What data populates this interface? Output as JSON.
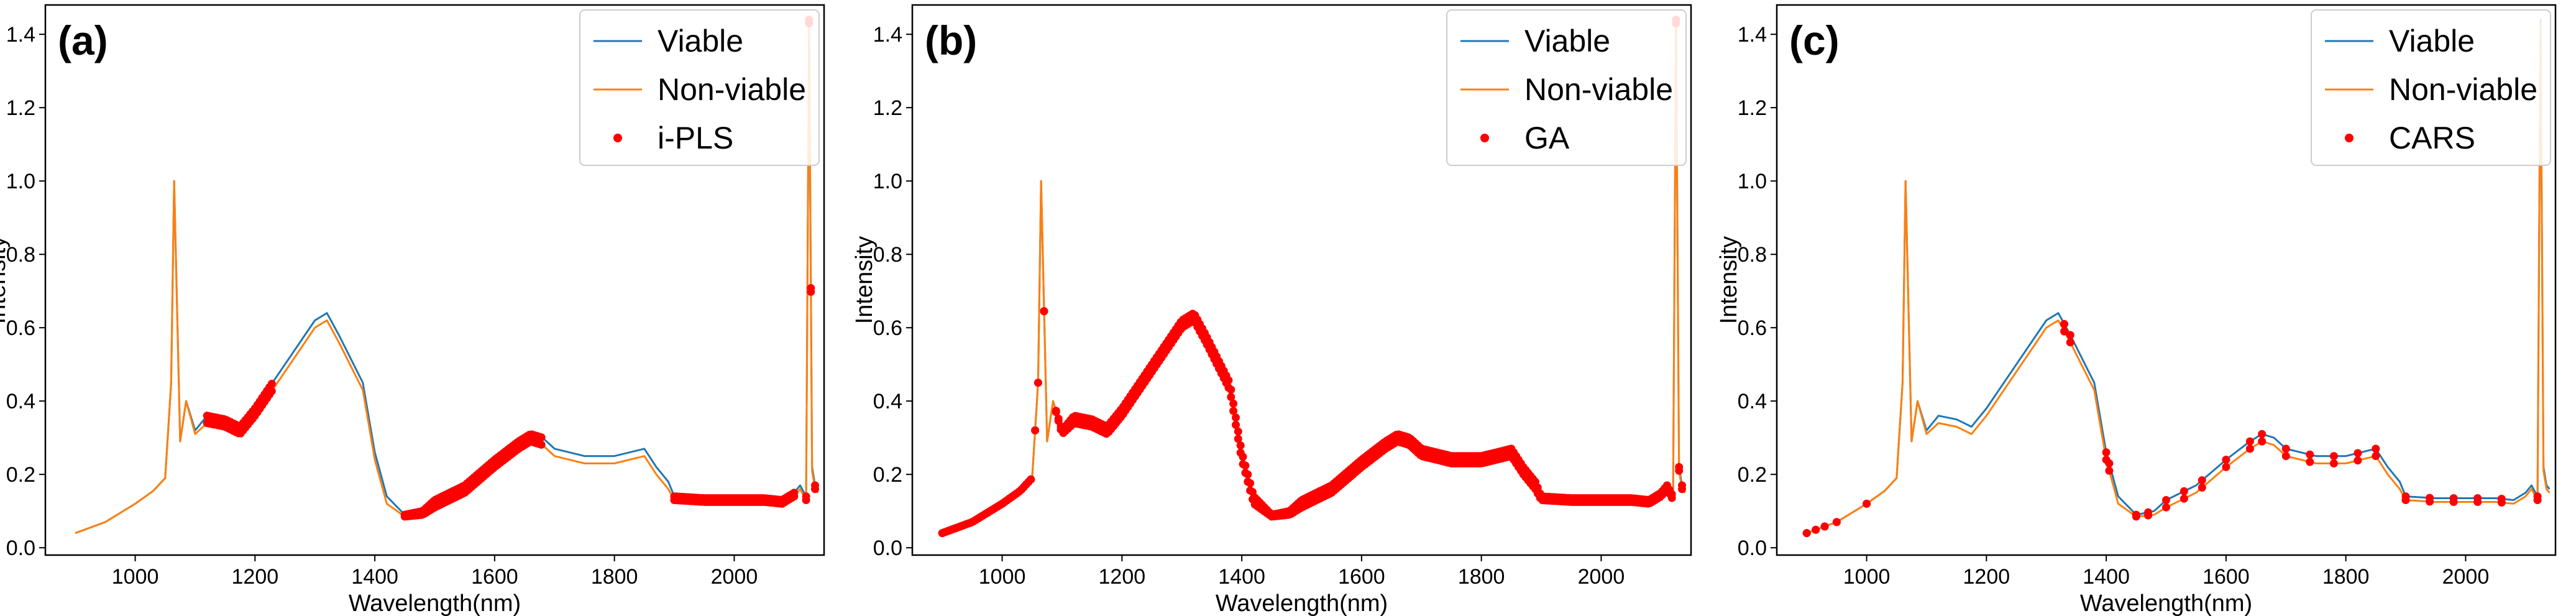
{
  "spectrum": {
    "wavelengths": [
      900,
      950,
      1000,
      1030,
      1050,
      1060,
      1065,
      1075,
      1085,
      1100,
      1120,
      1150,
      1175,
      1200,
      1250,
      1300,
      1320,
      1340,
      1380,
      1400,
      1420,
      1450,
      1480,
      1500,
      1550,
      1600,
      1640,
      1660,
      1680,
      1700,
      1750,
      1800,
      1850,
      1870,
      1890,
      1900,
      1950,
      2000,
      2050,
      2080,
      2100,
      2110,
      2120,
      2125,
      2130,
      2135,
      2140
    ],
    "viable": [
      0.04,
      0.07,
      0.12,
      0.155,
      0.19,
      0.45,
      1.0,
      0.29,
      0.4,
      0.32,
      0.36,
      0.35,
      0.33,
      0.38,
      0.5,
      0.62,
      0.64,
      0.58,
      0.45,
      0.26,
      0.14,
      0.09,
      0.1,
      0.13,
      0.17,
      0.24,
      0.29,
      0.31,
      0.3,
      0.27,
      0.25,
      0.25,
      0.27,
      0.22,
      0.18,
      0.14,
      0.135,
      0.135,
      0.135,
      0.13,
      0.15,
      0.17,
      0.14,
      1.44,
      0.22,
      0.17,
      0.16
    ],
    "nonviable": [
      0.04,
      0.07,
      0.12,
      0.155,
      0.19,
      0.45,
      1.0,
      0.29,
      0.4,
      0.31,
      0.34,
      0.33,
      0.31,
      0.36,
      0.48,
      0.6,
      0.62,
      0.56,
      0.43,
      0.24,
      0.12,
      0.085,
      0.09,
      0.11,
      0.15,
      0.22,
      0.27,
      0.29,
      0.28,
      0.25,
      0.23,
      0.23,
      0.25,
      0.2,
      0.16,
      0.13,
      0.125,
      0.125,
      0.125,
      0.12,
      0.14,
      0.16,
      0.13,
      1.43,
      0.21,
      0.16,
      0.15
    ]
  },
  "chart_data": [
    {
      "type": "line",
      "panel_label": "(a)",
      "xlabel": "Wavelength(nm)",
      "ylabel": "Intensity",
      "xlim": [
        850,
        2150
      ],
      "ylim": [
        -0.02,
        1.48
      ],
      "xticks": [
        1000,
        1200,
        1400,
        1600,
        1800,
        2000
      ],
      "yticks": [
        0.0,
        0.2,
        0.4,
        0.6,
        0.8,
        1.0,
        1.2,
        1.4
      ],
      "legend_position": "top-right",
      "legend": [
        "Viable",
        "Non-viable",
        "i-PLS"
      ],
      "selected_ranges": [
        [
          1120,
          1230
        ],
        [
          1450,
          1680
        ],
        [
          1900,
          2100
        ]
      ],
      "selected_points": [
        2120,
        2125,
        2128,
        2135
      ],
      "selected_name": "i-PLS"
    },
    {
      "type": "line",
      "panel_label": "(b)",
      "xlabel": "Wavelength(nm)",
      "ylabel": "Intensity",
      "xlim": [
        850,
        2150
      ],
      "ylim": [
        -0.02,
        1.48
      ],
      "xticks": [
        1000,
        1200,
        1400,
        1600,
        1800,
        2000
      ],
      "yticks": [
        0.0,
        0.2,
        0.4,
        0.6,
        0.8,
        1.0,
        1.2,
        1.4
      ],
      "legend_position": "top-right",
      "legend": [
        "Viable",
        "Non-viable",
        "GA"
      ],
      "selected_ranges": [
        [
          900,
          1050
        ],
        [
          1090,
          2120
        ]
      ],
      "selected_points": [
        1055,
        1060,
        1070,
        1125,
        2125,
        2130,
        2135
      ],
      "selected_name": "GA"
    },
    {
      "type": "line",
      "panel_label": "(c)",
      "xlabel": "Wavelength(nm)",
      "ylabel": "Intensity",
      "xlim": [
        850,
        2150
      ],
      "ylim": [
        -0.02,
        1.48
      ],
      "xticks": [
        1000,
        1200,
        1400,
        1600,
        1800,
        2000
      ],
      "yticks": [
        0.0,
        0.2,
        0.4,
        0.6,
        0.8,
        1.0,
        1.2,
        1.4
      ],
      "legend_position": "top-right",
      "legend": [
        "Viable",
        "Non-viable",
        "CARS"
      ],
      "selected_ranges": [],
      "selected_points": [
        900,
        915,
        930,
        950,
        1000,
        1330,
        1340,
        1400,
        1405,
        1450,
        1470,
        1500,
        1530,
        1560,
        1600,
        1640,
        1660,
        1700,
        1740,
        1780,
        1820,
        1850,
        1900,
        1940,
        1980,
        2020,
        2060,
        2120
      ],
      "selected_name": "CARS"
    }
  ],
  "colors": {
    "viable": "#1f77b4",
    "nonviable": "#ff7f0e",
    "selected": "#ff0000",
    "axis": "#000000"
  }
}
